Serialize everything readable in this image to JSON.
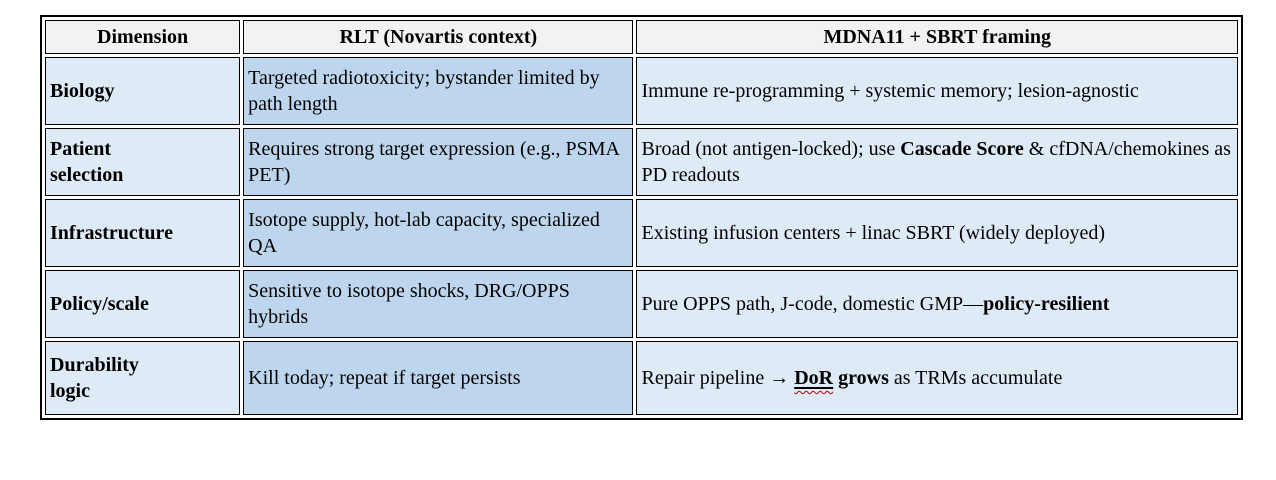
{
  "colors": {
    "header_bg": "#F2F2F2",
    "dimension_col_bg": "#DEEAF6",
    "rlt_col_bg": "#BDD6EE",
    "mdna_col_bg": "#DEEAF6",
    "border": "#000000",
    "spellcheck_squiggle": "#C00000"
  },
  "table": {
    "columns": [
      "Dimension",
      "RLT (Novartis context)",
      "MDNA11 + SBRT framing"
    ],
    "rows": [
      {
        "dimension": "Biology",
        "rlt": [
          {
            "t": "Targeted radiotoxicity; bystander limited by path length"
          }
        ],
        "mdna": [
          {
            "t": "Immune re-programming + systemic memory; lesion-agnostic"
          }
        ]
      },
      {
        "dimension": "Patient\nselection",
        "rlt": [
          {
            "t": "Requires strong target expression (e.g., PSMA PET)"
          }
        ],
        "mdna": [
          {
            "t": "Broad (not antigen-locked); use "
          },
          {
            "t": "Cascade Score",
            "b": true
          },
          {
            "t": " & cfDNA/chemokines as PD readouts"
          }
        ]
      },
      {
        "dimension": "Infrastructure",
        "rlt": [
          {
            "t": "Isotope supply, hot-lab capacity, specialized QA"
          }
        ],
        "mdna": [
          {
            "t": "Existing infusion centers + linac SBRT (widely deployed)"
          }
        ]
      },
      {
        "dimension": "Policy/scale",
        "rlt": [
          {
            "t": "Sensitive to isotope shocks, DRG/OPPS hybrids"
          }
        ],
        "mdna": [
          {
            "t": "Pure OPPS path, J-code, domestic GMP—"
          },
          {
            "t": "policy-resilient",
            "b": true
          }
        ]
      },
      {
        "dimension": "Durability\nlogic",
        "rlt": [
          {
            "t": "Kill today; repeat if target persists"
          }
        ],
        "mdna": [
          {
            "t": "Repair pipeline → "
          },
          {
            "t": "DoR",
            "b": true,
            "u": true,
            "w": true
          },
          {
            "t": " grows",
            "b": true
          },
          {
            "t": " as TRMs accumulate"
          }
        ]
      }
    ]
  }
}
